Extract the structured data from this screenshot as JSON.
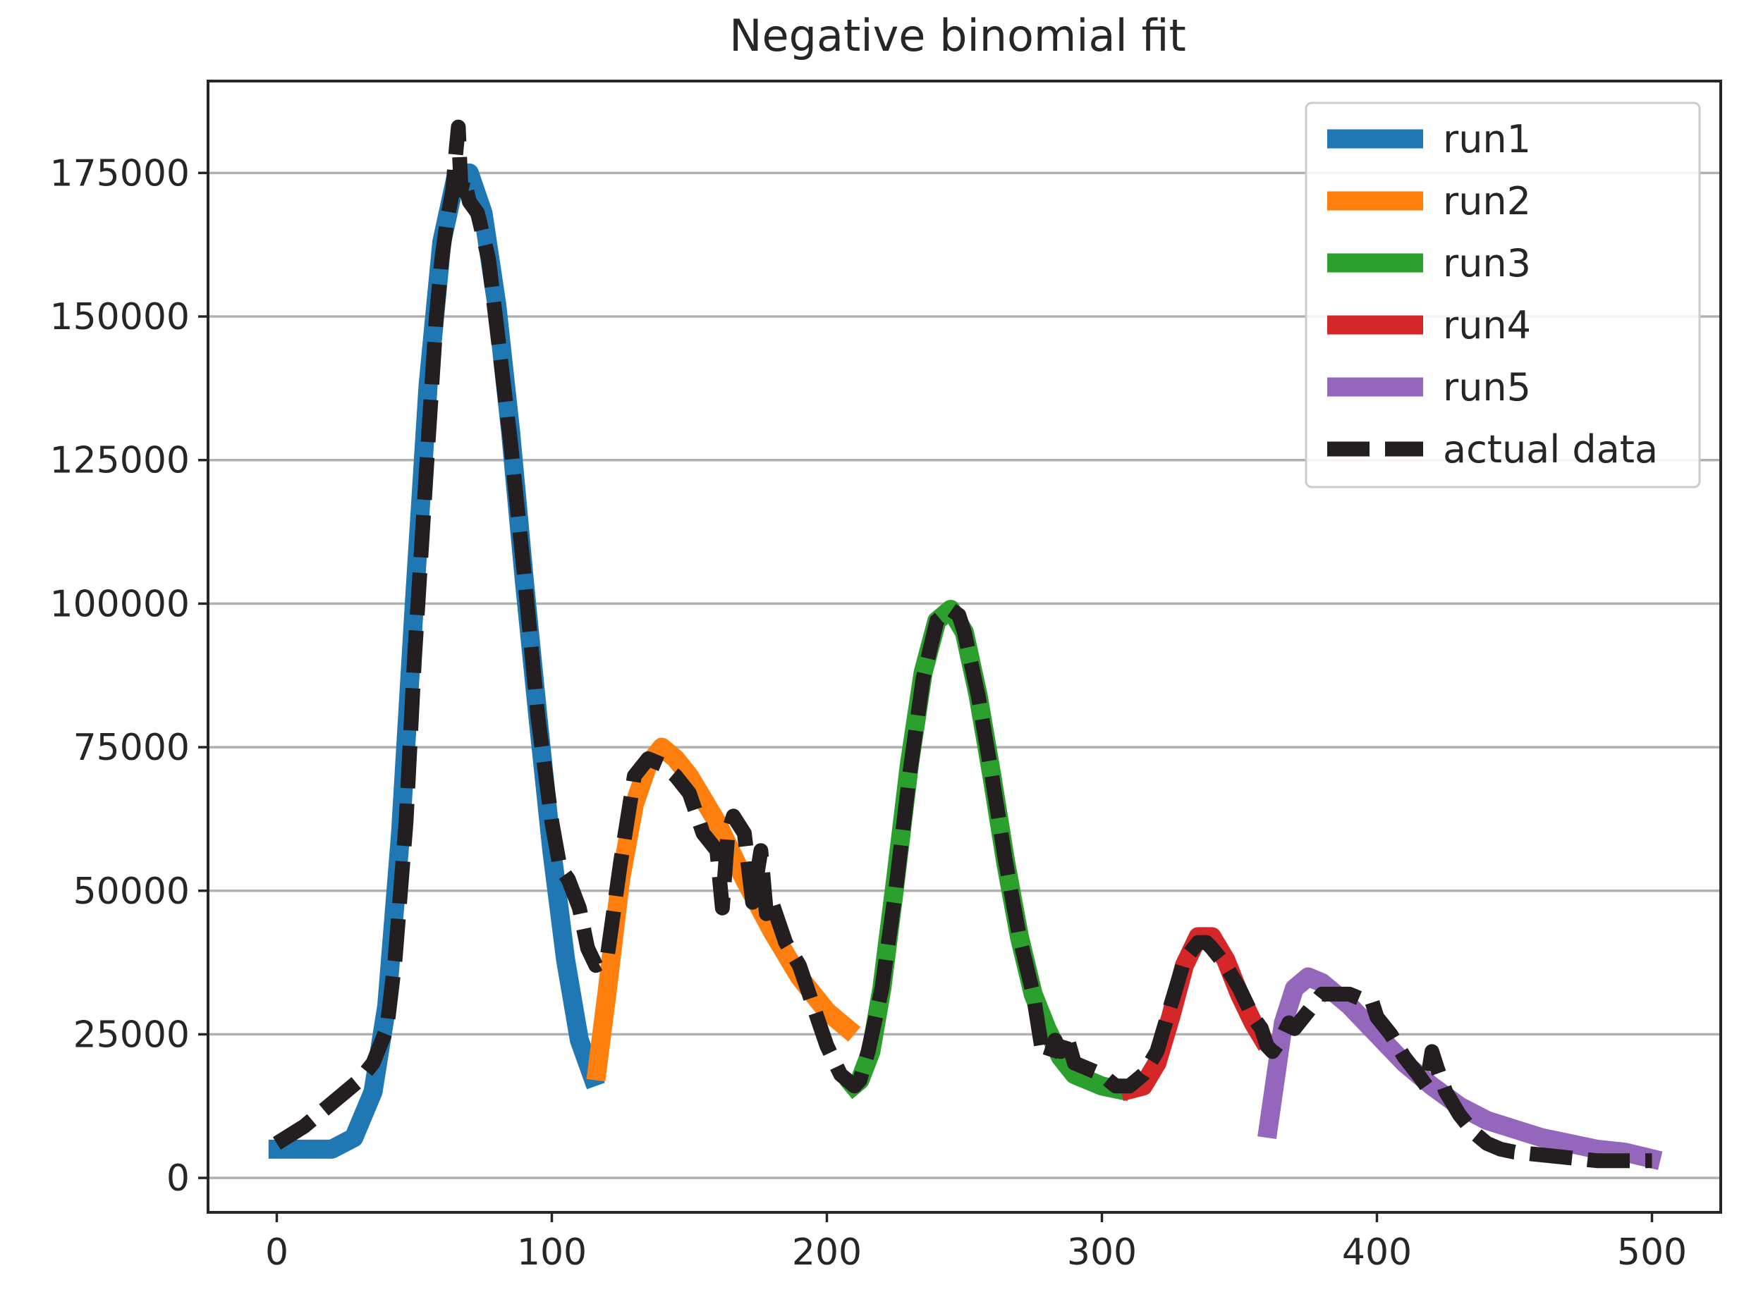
{
  "chart_data": {
    "type": "line",
    "title": "Negative binomial fit",
    "xlabel": "",
    "ylabel": "",
    "xlim": [
      -25,
      525
    ],
    "ylim": [
      -6000,
      191000
    ],
    "xticks": [
      0,
      100,
      200,
      300,
      400,
      500
    ],
    "yticks": [
      0,
      25000,
      50000,
      75000,
      100000,
      125000,
      150000,
      175000
    ],
    "grid": "horizontal",
    "legend_position": "top-right",
    "series": [
      {
        "name": "run1",
        "color": "#1f77b4",
        "x": [
          -3,
          10,
          20,
          28,
          35,
          40,
          45,
          50,
          55,
          60,
          65,
          70,
          75,
          80,
          85,
          90,
          95,
          100,
          105,
          110,
          116
        ],
        "y": [
          5000,
          5000,
          5000,
          7000,
          15000,
          30000,
          60000,
          100000,
          138000,
          163000,
          174000,
          175000,
          168000,
          152000,
          130000,
          104000,
          80000,
          57000,
          38000,
          24000,
          16000
        ]
      },
      {
        "name": "run2",
        "color": "#ff7f0e",
        "x": [
          116,
          120,
          125,
          130,
          135,
          140,
          145,
          150,
          160,
          170,
          180,
          190,
          200,
          210
        ],
        "y": [
          17000,
          32000,
          52000,
          65000,
          72000,
          75000,
          73000,
          70000,
          62000,
          52000,
          43000,
          35000,
          29000,
          25000
        ]
      },
      {
        "name": "run3",
        "color": "#2ca02c",
        "x": [
          207,
          212,
          216,
          220,
          225,
          230,
          235,
          240,
          245,
          250,
          255,
          260,
          265,
          270,
          275,
          280,
          285,
          290,
          300,
          310
        ],
        "y": [
          15000,
          17000,
          22000,
          33000,
          52000,
          72000,
          88000,
          97000,
          99000,
          95000,
          84000,
          70000,
          55000,
          42000,
          32000,
          26000,
          21000,
          18000,
          16000,
          15000
        ]
      },
      {
        "name": "run4",
        "color": "#d62728",
        "x": [
          307,
          315,
          320,
          325,
          330,
          335,
          340,
          345,
          350,
          355,
          360
        ],
        "y": [
          15000,
          16000,
          20000,
          28000,
          37000,
          42000,
          42000,
          38000,
          32000,
          27000,
          23000
        ]
      },
      {
        "name": "run5",
        "color": "#9467bd",
        "x": [
          360,
          363,
          366,
          370,
          375,
          380,
          390,
          400,
          410,
          420,
          430,
          440,
          450,
          460,
          470,
          480,
          490,
          503
        ],
        "y": [
          7000,
          17000,
          27000,
          33000,
          35000,
          34000,
          30000,
          25000,
          20000,
          16000,
          12500,
          10000,
          8500,
          7000,
          6000,
          5000,
          4500,
          3000
        ]
      },
      {
        "name": "actual data",
        "color": "#231f20",
        "x": [
          0,
          10,
          20,
          30,
          35,
          40,
          43,
          47,
          50,
          55,
          58,
          60,
          62,
          64,
          65,
          66,
          67,
          68,
          70,
          73,
          77,
          80,
          85,
          90,
          95,
          100,
          103,
          106,
          110,
          113,
          116,
          120,
          125,
          130,
          135,
          140,
          145,
          150,
          155,
          160,
          162,
          164,
          166,
          170,
          173,
          176,
          178,
          180,
          185,
          190,
          195,
          200,
          205,
          210,
          212,
          215,
          220,
          225,
          230,
          235,
          240,
          245,
          248,
          250,
          255,
          260,
          265,
          270,
          275,
          278,
          281,
          283,
          285,
          287,
          290,
          295,
          300,
          305,
          310,
          315,
          320,
          325,
          330,
          335,
          338,
          340,
          345,
          350,
          355,
          358,
          360,
          362,
          365,
          368,
          370,
          375,
          380,
          385,
          390,
          395,
          398,
          400,
          405,
          410,
          415,
          418,
          420,
          422,
          425,
          430,
          435,
          440,
          445,
          450,
          460,
          470,
          480,
          490,
          500
        ],
        "y": [
          6000,
          9000,
          13000,
          17000,
          20000,
          26000,
          38000,
          62000,
          90000,
          128000,
          150000,
          160000,
          167000,
          172000,
          178000,
          183000,
          172000,
          174000,
          170000,
          168000,
          160000,
          148000,
          128000,
          105000,
          80000,
          62000,
          54000,
          52000,
          47000,
          40000,
          37000,
          38000,
          55000,
          70000,
          73000,
          72000,
          70000,
          67000,
          60000,
          57000,
          47000,
          60000,
          63000,
          60000,
          48000,
          57000,
          46000,
          48000,
          41000,
          37000,
          30000,
          23000,
          18000,
          16000,
          17000,
          22000,
          33000,
          50000,
          70000,
          87000,
          97000,
          99000,
          98000,
          95000,
          84000,
          70000,
          55000,
          42000,
          32000,
          23000,
          21000,
          24000,
          22000,
          25000,
          20000,
          19000,
          18000,
          16000,
          16000,
          18000,
          22000,
          30000,
          38000,
          41000,
          41000,
          40000,
          37000,
          33000,
          28000,
          26000,
          23000,
          22000,
          24000,
          27000,
          26000,
          29000,
          32000,
          32000,
          32000,
          31000,
          31000,
          28000,
          25000,
          21000,
          18000,
          16000,
          22000,
          19000,
          15000,
          11000,
          8000,
          6000,
          5000,
          4500,
          4000,
          3500,
          3000,
          3000,
          3000
        ]
      }
    ]
  }
}
